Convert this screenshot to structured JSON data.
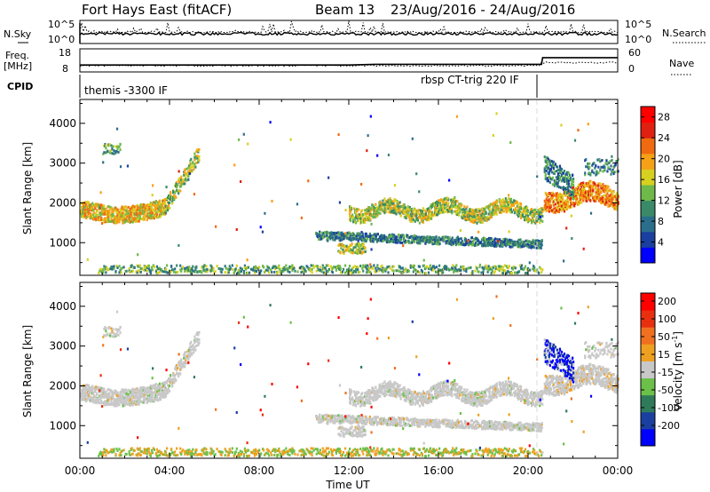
{
  "header": {
    "title": "Fort Hays East (fitACF)",
    "beam_label": "Beam 13",
    "date_range": "23/Aug/2016 - 24/Aug/2016"
  },
  "chart_data": [
    {
      "type": "line",
      "panel": "nsky-nsearch",
      "left_label": "N.Sky",
      "right_label": "N.Search",
      "left_ticks": [
        "10^5",
        "10^0"
      ],
      "right_ticks": [
        "10^5",
        "10^0"
      ]
    },
    {
      "type": "line",
      "panel": "freq-nave",
      "left_label_line1": "Freq.",
      "left_label_line2": "[MHz]",
      "right_label": "Nave",
      "left_ticks": [
        "18",
        "8"
      ],
      "right_ticks": [
        "60",
        "0"
      ],
      "freq_series": [
        {
          "t": 0.0,
          "f": 11.0
        },
        {
          "t": 12.0,
          "f": 11.0
        },
        {
          "t": 13.2,
          "f": 11.3
        },
        {
          "t": 20.6,
          "f": 11.3
        },
        {
          "t": 20.65,
          "f": 14.2
        },
        {
          "t": 24.0,
          "f": 14.2
        }
      ]
    },
    {
      "type": "table",
      "panel": "cpid",
      "label": "CPID",
      "entries": [
        {
          "t_start": 0.0,
          "text": "themis -3300 IF"
        },
        {
          "t_start": 20.6,
          "text": "rbsp CT-trig 220 IF"
        }
      ]
    },
    {
      "type": "heatmap",
      "panel": "power",
      "ylabel": "Slant Range [km]",
      "yticks": [
        1000,
        2000,
        3000,
        4000
      ],
      "ylim": [
        180,
        4600
      ],
      "colorbar_label": "Power [dB]",
      "colorbar_ticks": [
        4,
        8,
        12,
        16,
        20,
        24,
        28
      ],
      "colorbar_range": [
        0,
        30
      ],
      "colors": [
        "#0000ff",
        "#1a3fa0",
        "#2a6e8c",
        "#3a8a6a",
        "#6fb84a",
        "#d8d020",
        "#f6a018",
        "#f06a10",
        "#e02010",
        "#ff0000"
      ]
    },
    {
      "type": "heatmap",
      "panel": "velocity",
      "ylabel": "Slant Range [km]",
      "yticks": [
        1000,
        2000,
        3000,
        4000
      ],
      "ylim": [
        180,
        4600
      ],
      "colorbar_label": "Velocity [m s^-1]",
      "colorbar_label_main": "Velocity [m s",
      "colorbar_label_exp": "-1",
      "colorbar_label_end": "]",
      "colorbar_ticks": [
        "200",
        "100",
        "50",
        "15",
        "-15",
        "-50",
        "-100",
        "-200"
      ],
      "colors": [
        "#0000ff",
        "#1a3fa0",
        "#2e7a5a",
        "#6cc04a",
        "#c8c8c8",
        "#f0a020",
        "#f07020",
        "#e83010",
        "#ff0000"
      ]
    }
  ],
  "xaxis": {
    "label": "Time UT",
    "ticks": [
      "00:00",
      "04:00",
      "08:00",
      "12:00",
      "16:00",
      "20:00",
      "00:00"
    ],
    "xlim": [
      0,
      24
    ]
  }
}
